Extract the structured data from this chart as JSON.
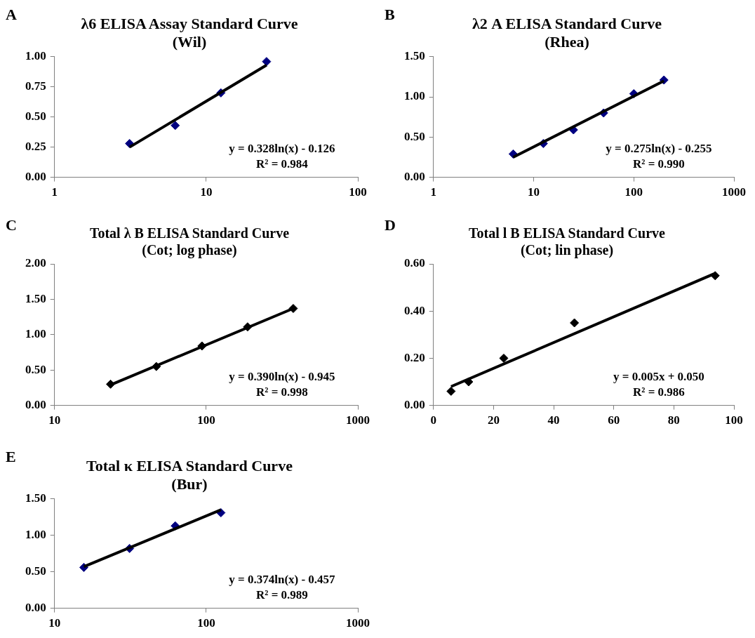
{
  "chart_data": [
    {
      "type": "scatter",
      "title": "λ6 ELISA Assay Standard Curve",
      "subtitle": "(Wil)",
      "annotations": [
        "A",
        "y = 0.328ln(x) - 0.126",
        "R² = 0.984"
      ],
      "log": "x",
      "grid": false,
      "legend": false,
      "xlim": [
        1,
        100
      ],
      "xticks": [
        1,
        10,
        100
      ],
      "ylim": [
        0,
        1
      ],
      "yticks": [
        {
          "value": 0,
          "label": "0.00"
        },
        {
          "value": 0.25,
          "label": "0.25"
        },
        {
          "value": 0.5,
          "label": "0.50"
        },
        {
          "value": 0.75,
          "label": "0.75"
        },
        {
          "value": 1,
          "label": "1.00"
        }
      ],
      "series": [
        {
          "type": "scatter",
          "marker": "diamond",
          "color": "#000080",
          "x": [
            3.125,
            6.25,
            12.5,
            25
          ],
          "values": [
            0.28,
            0.43,
            0.7,
            0.96
          ]
        },
        {
          "type": "line",
          "marker": "none",
          "color": "#000000",
          "x": [
            3.125,
            25
          ],
          "values": [
            0.25,
            0.93
          ]
        }
      ]
    },
    {
      "type": "scatter",
      "title": "λ2 A ELISA Standard Curve",
      "subtitle": "(Rhea)",
      "annotations": [
        "B",
        "y = 0.275ln(x) - 0.255",
        "R² = 0.990"
      ],
      "log": "x",
      "grid": false,
      "legend": false,
      "xlim": [
        1,
        1000
      ],
      "xticks": [
        1,
        10,
        100,
        1000
      ],
      "ylim": [
        0,
        1.5
      ],
      "yticks": [
        {
          "value": 0,
          "label": "0.00"
        },
        {
          "value": 0.5,
          "label": "0.50"
        },
        {
          "value": 1,
          "label": "1.00"
        },
        {
          "value": 1.5,
          "label": "1.50"
        }
      ],
      "series": [
        {
          "type": "scatter",
          "marker": "diamond",
          "color": "#000080",
          "x": [
            6.25,
            12.5,
            25,
            50,
            100,
            200
          ],
          "values": [
            0.29,
            0.42,
            0.59,
            0.8,
            1.04,
            1.21
          ]
        },
        {
          "type": "line",
          "marker": "none",
          "color": "#000000",
          "x": [
            6.25,
            200
          ],
          "values": [
            0.25,
            1.2
          ]
        }
      ]
    },
    {
      "type": "scatter",
      "title": "Total λ B ELISA Standard Curve",
      "subtitle": "(Cot; log phase)",
      "annotations": [
        "C",
        "y = 0.390ln(x) - 0.945",
        "R² = 0.998"
      ],
      "log": "x",
      "grid": false,
      "legend": false,
      "xlim": [
        10,
        1000
      ],
      "xticks": [
        10,
        100,
        1000
      ],
      "ylim": [
        0,
        2
      ],
      "yticks": [
        {
          "value": 0,
          "label": "0.00"
        },
        {
          "value": 0.5,
          "label": "0.50"
        },
        {
          "value": 1,
          "label": "1.00"
        },
        {
          "value": 1.5,
          "label": "1.50"
        },
        {
          "value": 2,
          "label": "2.00"
        }
      ],
      "series": [
        {
          "type": "scatter",
          "marker": "diamond",
          "color": "#000000",
          "x": [
            23.4,
            46.9,
            93.75,
            187.5,
            375
          ],
          "values": [
            0.3,
            0.55,
            0.84,
            1.11,
            1.37
          ]
        },
        {
          "type": "line",
          "marker": "none",
          "color": "#000000",
          "x": [
            23.4,
            375
          ],
          "values": [
            0.29,
            1.37
          ]
        }
      ]
    },
    {
      "type": "scatter",
      "title": "Total l B ELISA Standard Curve",
      "subtitle": "(Cot; lin phase)",
      "annotations": [
        "D",
        "y = 0.005x + 0.050",
        "R² = 0.986"
      ],
      "grid": false,
      "legend": false,
      "xlim": [
        0,
        100
      ],
      "xticks": [
        0,
        20,
        40,
        60,
        80,
        100
      ],
      "ylim": [
        0,
        0.6
      ],
      "yticks": [
        {
          "value": 0,
          "label": "0.00"
        },
        {
          "value": 0.2,
          "label": "0.20"
        },
        {
          "value": 0.4,
          "label": "0.40"
        },
        {
          "value": 0.6,
          "label": "0.60"
        }
      ],
      "series": [
        {
          "type": "scatter",
          "marker": "diamond",
          "color": "#000000",
          "x": [
            5.86,
            11.7,
            23.4,
            46.9,
            93.75
          ],
          "values": [
            0.06,
            0.1,
            0.2,
            0.35,
            0.55
          ]
        },
        {
          "type": "line",
          "marker": "none",
          "color": "#000000",
          "x": [
            5.86,
            93.75
          ],
          "values": [
            0.08,
            0.56
          ]
        }
      ]
    },
    {
      "type": "scatter",
      "title": "Total κ ELISA Standard Curve",
      "subtitle": "(Bur)",
      "annotations": [
        "E",
        "y = 0.374ln(x) - 0.457",
        "R² = 0.989"
      ],
      "log": "x",
      "grid": false,
      "legend": false,
      "xlim": [
        10,
        1000
      ],
      "xticks": [
        10,
        100,
        1000
      ],
      "ylim": [
        0,
        1.5
      ],
      "yticks": [
        {
          "value": 0,
          "label": "0.00"
        },
        {
          "value": 0.5,
          "label": "0.50"
        },
        {
          "value": 1,
          "label": "1.00"
        },
        {
          "value": 1.5,
          "label": "1.50"
        }
      ],
      "series": [
        {
          "type": "scatter",
          "marker": "diamond",
          "color": "#000080",
          "x": [
            15.6,
            31.25,
            62.5,
            125
          ],
          "values": [
            0.56,
            0.82,
            1.13,
            1.31
          ]
        },
        {
          "type": "line",
          "marker": "none",
          "color": "#000000",
          "x": [
            15.6,
            125
          ],
          "values": [
            0.57,
            1.35
          ]
        }
      ]
    }
  ]
}
